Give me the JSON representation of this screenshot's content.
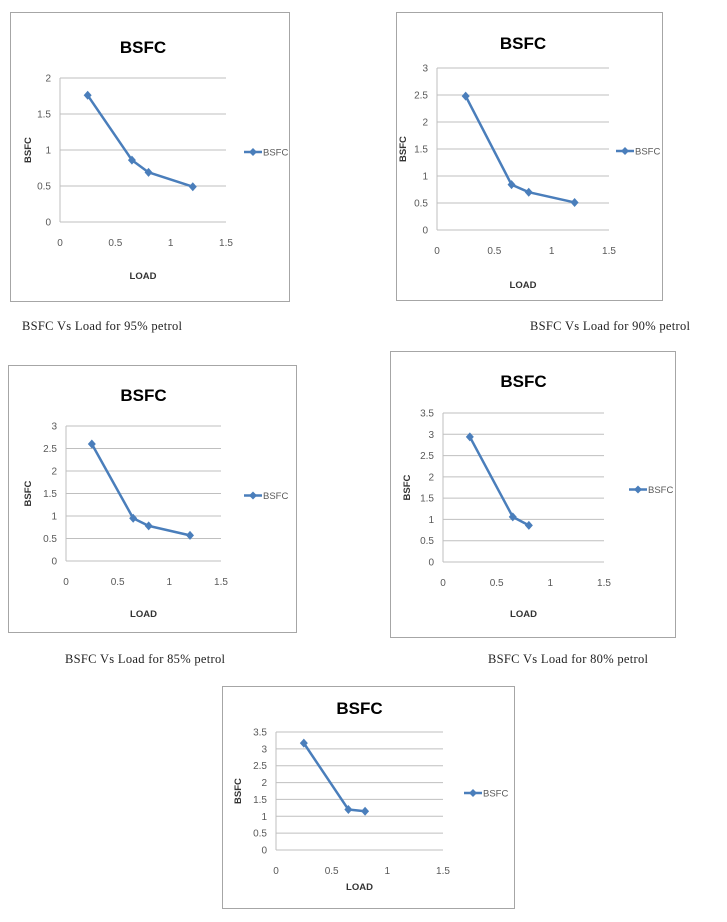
{
  "chart_data": [
    {
      "type": "line",
      "title": "BSFC",
      "xlabel": "LOAD",
      "ylabel": "BSFC",
      "legend": "BSFC",
      "legend_position": "right",
      "caption": "BSFC Vs Load for 95% petrol",
      "x": [
        0.25,
        0.65,
        0.8,
        1.2
      ],
      "series": [
        {
          "name": "BSFC",
          "values": [
            1.76,
            0.86,
            0.69,
            0.49
          ]
        }
      ],
      "xlim": [
        0,
        1.5
      ],
      "ylim": [
        0,
        2
      ],
      "xticks": [
        "0",
        "0.5",
        "1",
        "1.5"
      ],
      "yticks": [
        "0",
        "0.5",
        "1",
        "1.5",
        "2"
      ],
      "grid": true
    },
    {
      "type": "line",
      "title": "BSFC",
      "xlabel": "LOAD",
      "ylabel": "BSFC",
      "legend": "BSFC",
      "legend_position": "right",
      "caption": "BSFC Vs Load for 90% petrol",
      "x": [
        0.25,
        0.65,
        0.8,
        1.2
      ],
      "series": [
        {
          "name": "BSFC",
          "values": [
            2.48,
            0.84,
            0.7,
            0.51
          ]
        }
      ],
      "xlim": [
        0,
        1.5
      ],
      "ylim": [
        0,
        3
      ],
      "xticks": [
        "0",
        "0.5",
        "1",
        "1.5"
      ],
      "yticks": [
        "0",
        "0.5",
        "1",
        "1.5",
        "2",
        "2.5",
        "3"
      ],
      "grid": true
    },
    {
      "type": "line",
      "title": "BSFC",
      "xlabel": "LOAD",
      "ylabel": "BSFC",
      "legend": "BSFC",
      "legend_position": "right",
      "caption": "BSFC Vs Load for 85% petrol",
      "x": [
        0.25,
        0.65,
        0.8,
        1.2
      ],
      "series": [
        {
          "name": "BSFC",
          "values": [
            2.6,
            0.95,
            0.78,
            0.57
          ]
        }
      ],
      "xlim": [
        0,
        1.5
      ],
      "ylim": [
        0,
        3
      ],
      "xticks": [
        "0",
        "0.5",
        "1",
        "1.5"
      ],
      "yticks": [
        "0",
        "0.5",
        "1",
        "1.5",
        "2",
        "2.5",
        "3"
      ],
      "grid": true
    },
    {
      "type": "line",
      "title": "BSFC",
      "xlabel": "LOAD",
      "ylabel": "BSFC",
      "legend": "BSFC",
      "legend_position": "right",
      "caption": "BSFC Vs Load for 80% petrol",
      "x": [
        0.25,
        0.65,
        0.8
      ],
      "series": [
        {
          "name": "BSFC",
          "values": [
            2.94,
            1.06,
            0.86
          ]
        }
      ],
      "xlim": [
        0,
        1.5
      ],
      "ylim": [
        0,
        3.5
      ],
      "xticks": [
        "0",
        "0.5",
        "1",
        "1.5"
      ],
      "yticks": [
        "0",
        "0.5",
        "1",
        "1.5",
        "2",
        "2.5",
        "3",
        "3.5"
      ],
      "grid": true
    },
    {
      "type": "line",
      "title": "BSFC",
      "xlabel": "LOAD",
      "ylabel": "BSFC",
      "legend": "BSFC",
      "legend_position": "right",
      "x": [
        0.25,
        0.65,
        0.8
      ],
      "series": [
        {
          "name": "BSFC",
          "values": [
            3.17,
            1.2,
            1.15
          ]
        }
      ],
      "xlim": [
        0,
        1.5
      ],
      "ylim": [
        0,
        3.5
      ],
      "xticks": [
        "0",
        "0.5",
        "1",
        "1.5"
      ],
      "yticks": [
        "0",
        "0.5",
        "1",
        "1.5",
        "2",
        "2.5",
        "3",
        "3.5"
      ],
      "grid": true
    }
  ],
  "colors": {
    "line": "#4a7ebb",
    "grid": "#bfbfbf",
    "axis_text": "#595959"
  }
}
